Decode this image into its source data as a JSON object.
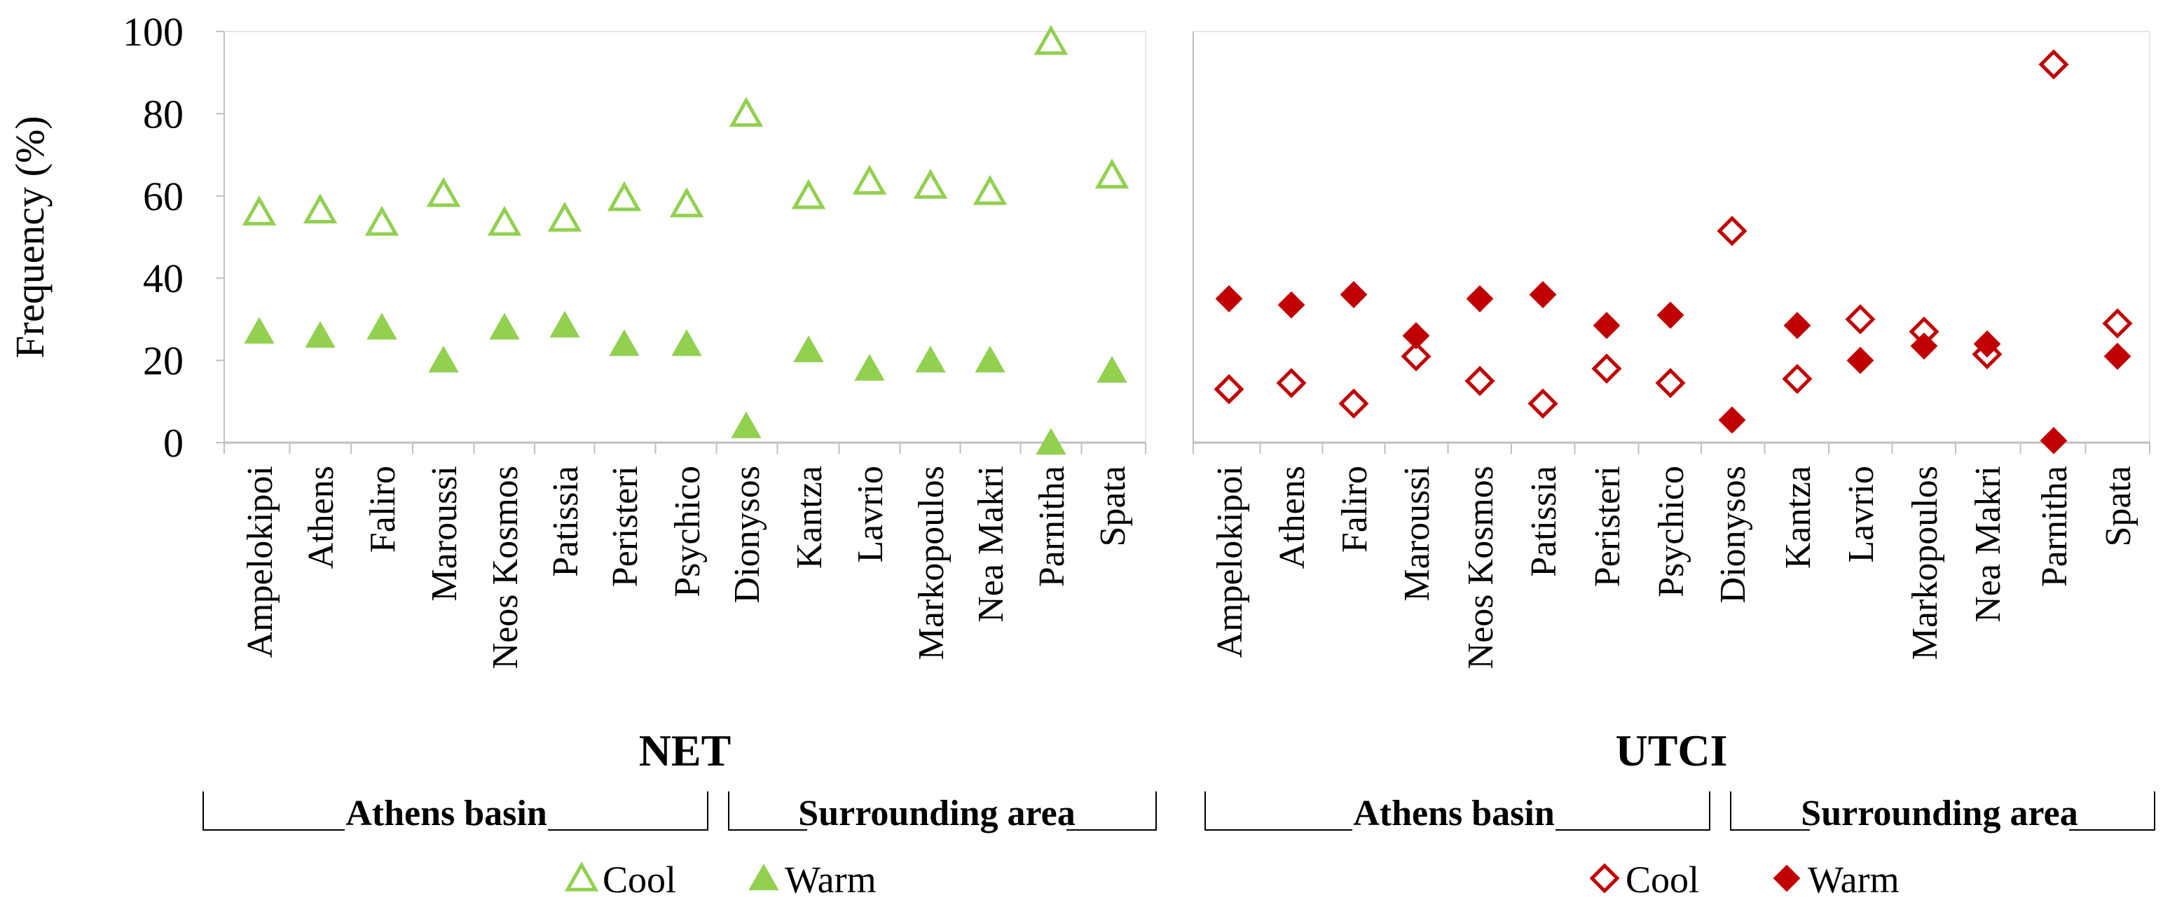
{
  "colors": {
    "net": "#92d050",
    "utci": "#c00000",
    "axis": "#bfbfbf",
    "grid": "#d9d9d9",
    "text": "#000000"
  },
  "ylabel": "Frequency (%)",
  "ylim": [
    0,
    100
  ],
  "yticks": [
    "0",
    "20",
    "40",
    "60",
    "80",
    "100"
  ],
  "groups": [
    "Athens basin",
    "Surrounding area"
  ],
  "chart_data": [
    {
      "type": "scatter",
      "title": "NET",
      "categories": [
        "Ampelokipoi",
        "Athens",
        "Faliro",
        "Maroussi",
        "Neos Kosmos",
        "Patissia",
        "Peristeri",
        "Psychico",
        "Dionysos",
        "Kantza",
        "Lavrio",
        "Markopoulos",
        "Nea Makri",
        "Parnitha",
        "Spata"
      ],
      "group_sizes": [
        8,
        7
      ],
      "series": [
        {
          "name": "Cool",
          "marker": "triangle-open",
          "values": [
            56,
            56.5,
            53.5,
            60.5,
            53.5,
            54.5,
            59.5,
            58,
            80,
            60,
            63.5,
            62.5,
            61,
            97.5,
            65
          ]
        },
        {
          "name": "Warm",
          "marker": "triangle-filled",
          "values": [
            27,
            26,
            28,
            20,
            28,
            28.5,
            24,
            24,
            4,
            22.5,
            18,
            20,
            20,
            0,
            17.5
          ]
        }
      ],
      "ylim": [
        0,
        100
      ]
    },
    {
      "type": "scatter",
      "title": "UTCI",
      "categories": [
        "Ampelokipoi",
        "Athens",
        "Faliro",
        "Maroussi",
        "Neos Kosmos",
        "Patissia",
        "Peristeri",
        "Psychico",
        "Dionysos",
        "Kantza",
        "Lavrio",
        "Markopoulos",
        "Nea Makri",
        "Parnitha",
        "Spata"
      ],
      "group_sizes": [
        8,
        7
      ],
      "series": [
        {
          "name": "Cool",
          "marker": "diamond-open",
          "values": [
            13,
            14.5,
            9.5,
            21,
            15,
            9.5,
            18,
            14.5,
            51.5,
            15.5,
            30,
            27,
            21.5,
            92,
            29
          ]
        },
        {
          "name": "Warm",
          "marker": "diamond-filled",
          "values": [
            35,
            33.5,
            36,
            26,
            35,
            36,
            28.5,
            31,
            5.5,
            28.5,
            20,
            23.5,
            24,
            0.5,
            21
          ]
        }
      ],
      "ylim": [
        0,
        100
      ]
    }
  ]
}
